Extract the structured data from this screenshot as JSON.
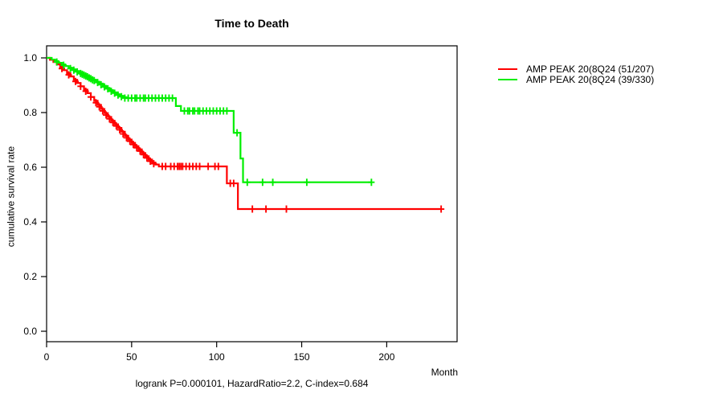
{
  "chart_data": {
    "type": "line",
    "subtype": "kaplan-meier-step-survival",
    "title": "Time to Death",
    "xlabel": "Month",
    "ylabel": "cumulative survival rate",
    "annotation": "logrank P=0.000101, HazardRatio=2.2, C-index=0.684",
    "x_ticks": [
      0,
      50,
      100,
      150,
      200
    ],
    "y_ticks": [
      0.0,
      0.2,
      0.4,
      0.6,
      0.8,
      1.0
    ],
    "xlim": [
      0,
      241
    ],
    "ylim": [
      0.0,
      1.0
    ],
    "grid": false,
    "legend_position": "right-outside",
    "colors": {
      "axis": "#000000",
      "background": "#ffffff",
      "text": "#000000"
    },
    "series": [
      {
        "name": "AMP PEAK 20(8Q24 (51/207)",
        "color": "#ff0000",
        "points": [
          [
            0,
            1
          ],
          [
            2,
            0.993
          ],
          [
            4,
            0.985
          ],
          [
            6,
            0.976
          ],
          [
            8,
            0.966
          ],
          [
            10,
            0.955
          ],
          [
            12,
            0.944
          ],
          [
            14,
            0.932
          ],
          [
            16,
            0.92
          ],
          [
            18,
            0.908
          ],
          [
            20,
            0.896
          ],
          [
            22,
            0.884
          ],
          [
            24,
            0.871
          ],
          [
            26,
            0.857
          ],
          [
            28,
            0.843
          ],
          [
            30,
            0.828
          ],
          [
            32,
            0.813
          ],
          [
            34,
            0.798
          ],
          [
            36,
            0.784
          ],
          [
            38,
            0.77
          ],
          [
            40,
            0.757
          ],
          [
            42,
            0.744
          ],
          [
            44,
            0.73
          ],
          [
            46,
            0.715
          ],
          [
            48,
            0.701
          ],
          [
            50,
            0.689
          ],
          [
            52,
            0.677
          ],
          [
            54,
            0.665
          ],
          [
            56,
            0.652
          ],
          [
            58,
            0.64
          ],
          [
            60,
            0.628
          ],
          [
            62,
            0.617
          ],
          [
            64,
            0.61
          ],
          [
            66,
            0.603
          ],
          [
            106,
            0.541
          ],
          [
            112.5,
            0.447
          ],
          [
            232,
            0.447
          ]
        ],
        "censors": [
          [
            9,
            0.961
          ],
          [
            13,
            0.938
          ],
          [
            17,
            0.914
          ],
          [
            20,
            0.896
          ],
          [
            23,
            0.878
          ],
          [
            26,
            0.857
          ],
          [
            29,
            0.836
          ],
          [
            31,
            0.821
          ],
          [
            33,
            0.806
          ],
          [
            35,
            0.791
          ],
          [
            37,
            0.777
          ],
          [
            39,
            0.764
          ],
          [
            41,
            0.751
          ],
          [
            43,
            0.737
          ],
          [
            45,
            0.722
          ],
          [
            47,
            0.708
          ],
          [
            49,
            0.695
          ],
          [
            51,
            0.683
          ],
          [
            53,
            0.671
          ],
          [
            55,
            0.659
          ],
          [
            57,
            0.646
          ],
          [
            59,
            0.634
          ],
          [
            61,
            0.622
          ],
          [
            63,
            0.613
          ],
          [
            68,
            0.603
          ],
          [
            70,
            0.603
          ],
          [
            73,
            0.603
          ],
          [
            75,
            0.603
          ],
          [
            77,
            0.603
          ],
          [
            78,
            0.603
          ],
          [
            79,
            0.603
          ],
          [
            80,
            0.603
          ],
          [
            82,
            0.603
          ],
          [
            84,
            0.603
          ],
          [
            86,
            0.603
          ],
          [
            88,
            0.603
          ],
          [
            90,
            0.603
          ],
          [
            95,
            0.603
          ],
          [
            99,
            0.603
          ],
          [
            101,
            0.603
          ],
          [
            108,
            0.541
          ],
          [
            110,
            0.541
          ],
          [
            121,
            0.447
          ],
          [
            129,
            0.447
          ],
          [
            141,
            0.447
          ],
          [
            232,
            0.447
          ]
        ]
      },
      {
        "name": "AMP PEAK 20(8Q24 (39/330)",
        "color": "#00ee00",
        "points": [
          [
            0,
            1
          ],
          [
            3,
            0.994
          ],
          [
            5,
            0.988
          ],
          [
            7,
            0.982
          ],
          [
            9,
            0.976
          ],
          [
            11,
            0.97
          ],
          [
            13,
            0.964
          ],
          [
            15,
            0.958
          ],
          [
            17,
            0.952
          ],
          [
            19,
            0.946
          ],
          [
            21,
            0.94
          ],
          [
            23,
            0.934
          ],
          [
            25,
            0.927
          ],
          [
            27,
            0.92
          ],
          [
            29,
            0.913
          ],
          [
            31,
            0.906
          ],
          [
            33,
            0.898
          ],
          [
            35,
            0.89
          ],
          [
            37,
            0.882
          ],
          [
            39,
            0.874
          ],
          [
            41,
            0.867
          ],
          [
            43,
            0.861
          ],
          [
            45,
            0.856
          ],
          [
            47,
            0.853
          ],
          [
            76,
            0.824
          ],
          [
            79,
            0.806
          ],
          [
            110,
            0.726
          ],
          [
            114,
            0.632
          ],
          [
            115.5,
            0.545
          ],
          [
            191,
            0.545
          ]
        ],
        "censors": [
          [
            6,
            0.985
          ],
          [
            10,
            0.973
          ],
          [
            14,
            0.961
          ],
          [
            16,
            0.955
          ],
          [
            18,
            0.949
          ],
          [
            20,
            0.943
          ],
          [
            21,
            0.94
          ],
          [
            22,
            0.937
          ],
          [
            23,
            0.934
          ],
          [
            24,
            0.931
          ],
          [
            25,
            0.927
          ],
          [
            26,
            0.924
          ],
          [
            27,
            0.92
          ],
          [
            28,
            0.917
          ],
          [
            30,
            0.91
          ],
          [
            32,
            0.902
          ],
          [
            34,
            0.894
          ],
          [
            36,
            0.887
          ],
          [
            38,
            0.878
          ],
          [
            40,
            0.871
          ],
          [
            42,
            0.864
          ],
          [
            44,
            0.858
          ],
          [
            46,
            0.853
          ],
          [
            48,
            0.853
          ],
          [
            50,
            0.853
          ],
          [
            52,
            0.853
          ],
          [
            53,
            0.853
          ],
          [
            55,
            0.853
          ],
          [
            57,
            0.853
          ],
          [
            58,
            0.853
          ],
          [
            60,
            0.853
          ],
          [
            62,
            0.853
          ],
          [
            64,
            0.853
          ],
          [
            66,
            0.853
          ],
          [
            68,
            0.853
          ],
          [
            70,
            0.853
          ],
          [
            72,
            0.853
          ],
          [
            74,
            0.853
          ],
          [
            81,
            0.806
          ],
          [
            83,
            0.806
          ],
          [
            84,
            0.806
          ],
          [
            86,
            0.806
          ],
          [
            87,
            0.806
          ],
          [
            89,
            0.806
          ],
          [
            90,
            0.806
          ],
          [
            92,
            0.806
          ],
          [
            94,
            0.806
          ],
          [
            96,
            0.806
          ],
          [
            98,
            0.806
          ],
          [
            100,
            0.806
          ],
          [
            102,
            0.806
          ],
          [
            104,
            0.806
          ],
          [
            106,
            0.806
          ],
          [
            112,
            0.726
          ],
          [
            118,
            0.545
          ],
          [
            127,
            0.545
          ],
          [
            133,
            0.545
          ],
          [
            153,
            0.545
          ],
          [
            191,
            0.545
          ]
        ]
      }
    ]
  }
}
